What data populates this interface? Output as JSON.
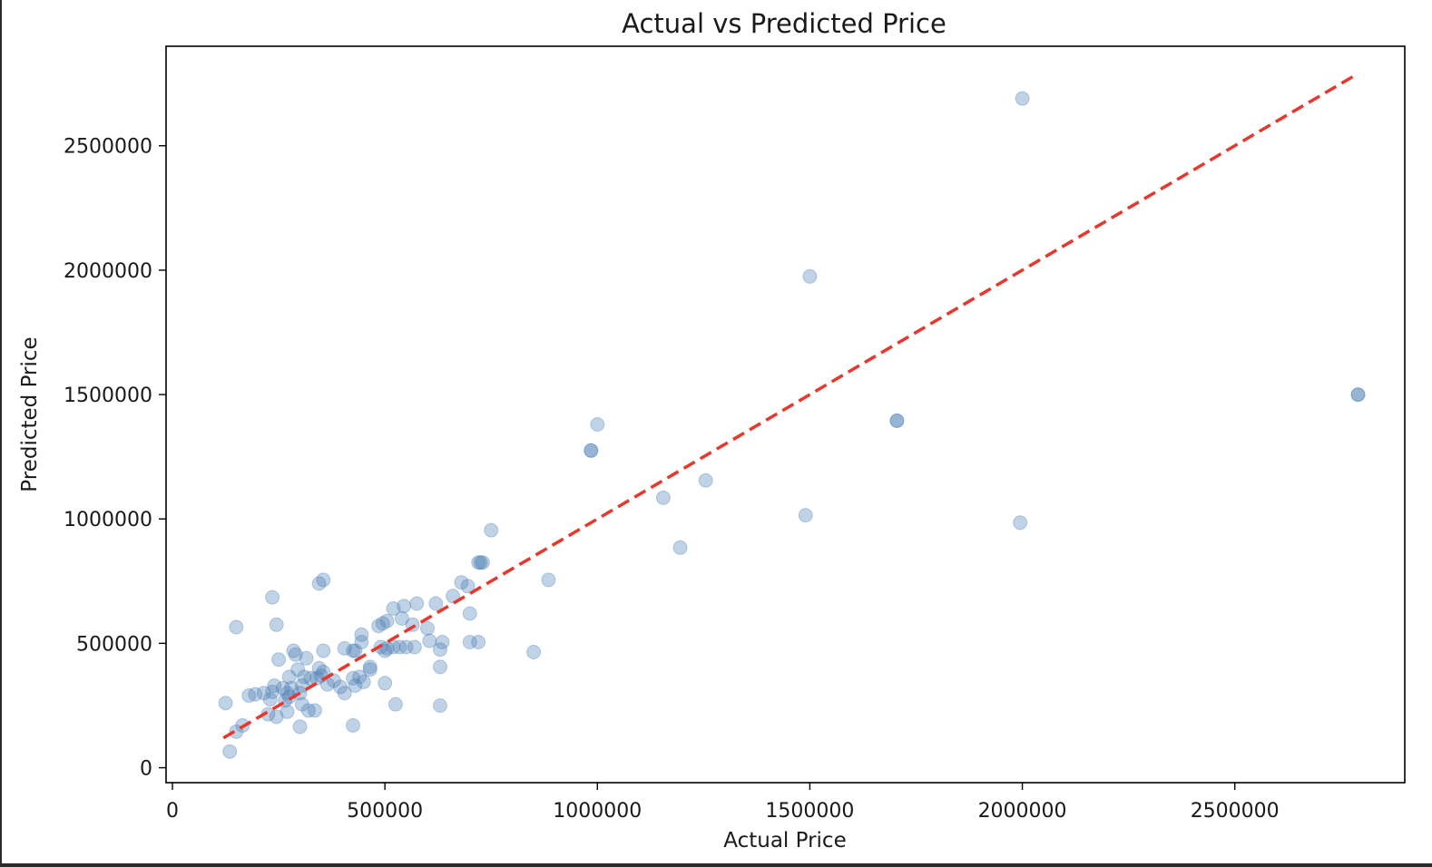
{
  "chart_data": {
    "type": "scatter",
    "title": "Actual vs Predicted Price",
    "xlabel": "Actual Price",
    "ylabel": "Predicted Price",
    "xlim": [
      -15000,
      2900000
    ],
    "ylim": [
      -60000,
      2900000
    ],
    "x_ticks": [
      0,
      500000,
      1000000,
      1500000,
      2000000,
      2500000
    ],
    "y_ticks": [
      0,
      500000,
      1000000,
      1500000,
      2000000,
      2500000
    ],
    "grid": false,
    "legend": "none",
    "marker_color": "#4a7fb5",
    "marker_alpha": 0.35,
    "reference_line": {
      "style": "dashed",
      "color": "#e8372c",
      "from": [
        120000,
        120000
      ],
      "to": [
        2790000,
        2790000
      ]
    },
    "points": [
      [
        2000000,
        2690000
      ],
      [
        1500000,
        1975000
      ],
      [
        2790000,
        1500000
      ],
      [
        2790000,
        1500000
      ],
      [
        1705000,
        1395000
      ],
      [
        1705000,
        1395000
      ],
      [
        1000000,
        1380000
      ],
      [
        985000,
        1275000
      ],
      [
        985000,
        1275000
      ],
      [
        1255000,
        1155000
      ],
      [
        1155000,
        1085000
      ],
      [
        1490000,
        1015000
      ],
      [
        1995000,
        985000
      ],
      [
        1195000,
        885000
      ],
      [
        885000,
        755000
      ],
      [
        750000,
        955000
      ],
      [
        725000,
        825000
      ],
      [
        730000,
        825000
      ],
      [
        720000,
        825000
      ],
      [
        680000,
        745000
      ],
      [
        695000,
        730000
      ],
      [
        660000,
        690000
      ],
      [
        700000,
        620000
      ],
      [
        850000,
        465000
      ],
      [
        700000,
        505000
      ],
      [
        720000,
        505000
      ],
      [
        635000,
        505000
      ],
      [
        630000,
        475000
      ],
      [
        630000,
        405000
      ],
      [
        630000,
        250000
      ],
      [
        620000,
        660000
      ],
      [
        575000,
        660000
      ],
      [
        545000,
        650000
      ],
      [
        520000,
        640000
      ],
      [
        540000,
        600000
      ],
      [
        565000,
        575000
      ],
      [
        600000,
        560000
      ],
      [
        605000,
        510000
      ],
      [
        570000,
        485000
      ],
      [
        550000,
        485000
      ],
      [
        535000,
        485000
      ],
      [
        520000,
        485000
      ],
      [
        505000,
        480000
      ],
      [
        490000,
        485000
      ],
      [
        500000,
        470000
      ],
      [
        505000,
        590000
      ],
      [
        495000,
        580000
      ],
      [
        485000,
        570000
      ],
      [
        500000,
        340000
      ],
      [
        525000,
        255000
      ],
      [
        445000,
        535000
      ],
      [
        445000,
        505000
      ],
      [
        425000,
        470000
      ],
      [
        430000,
        470000
      ],
      [
        405000,
        480000
      ],
      [
        465000,
        405000
      ],
      [
        465000,
        395000
      ],
      [
        440000,
        365000
      ],
      [
        450000,
        345000
      ],
      [
        425000,
        360000
      ],
      [
        430000,
        330000
      ],
      [
        405000,
        300000
      ],
      [
        425000,
        170000
      ],
      [
        395000,
        325000
      ],
      [
        380000,
        350000
      ],
      [
        365000,
        335000
      ],
      [
        355000,
        385000
      ],
      [
        350000,
        370000
      ],
      [
        340000,
        360000
      ],
      [
        345000,
        400000
      ],
      [
        355000,
        470000
      ],
      [
        355000,
        755000
      ],
      [
        345000,
        740000
      ],
      [
        335000,
        230000
      ],
      [
        325000,
        360000
      ],
      [
        315000,
        440000
      ],
      [
        310000,
        365000
      ],
      [
        305000,
        330000
      ],
      [
        300000,
        300000
      ],
      [
        295000,
        395000
      ],
      [
        290000,
        455000
      ],
      [
        285000,
        470000
      ],
      [
        275000,
        365000
      ],
      [
        280000,
        320000
      ],
      [
        270000,
        300000
      ],
      [
        275000,
        285000
      ],
      [
        265000,
        270000
      ],
      [
        260000,
        320000
      ],
      [
        250000,
        435000
      ],
      [
        245000,
        575000
      ],
      [
        235000,
        685000
      ],
      [
        240000,
        330000
      ],
      [
        235000,
        305000
      ],
      [
        230000,
        275000
      ],
      [
        245000,
        205000
      ],
      [
        225000,
        215000
      ],
      [
        215000,
        300000
      ],
      [
        195000,
        295000
      ],
      [
        180000,
        290000
      ],
      [
        165000,
        170000
      ],
      [
        150000,
        145000
      ],
      [
        150000,
        565000
      ],
      [
        125000,
        260000
      ],
      [
        135000,
        65000
      ],
      [
        300000,
        165000
      ],
      [
        305000,
        255000
      ],
      [
        270000,
        225000
      ],
      [
        320000,
        230000
      ]
    ]
  }
}
